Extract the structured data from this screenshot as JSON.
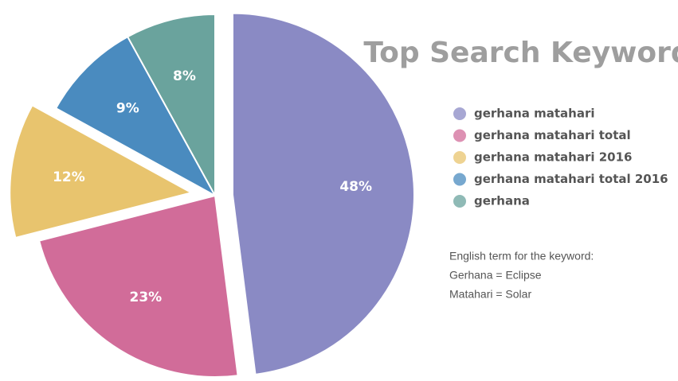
{
  "chart_data": {
    "type": "pie",
    "title": "Top Search Keyword",
    "categories": [
      "gerhana matahari",
      "gerhana matahari total",
      "gerhana matahari 2016",
      "gerhana matahari total 2016",
      "gerhana"
    ],
    "values": [
      48,
      23,
      12,
      9,
      8
    ],
    "value_labels": [
      "48%",
      "23%",
      "12%",
      "9%",
      "8%"
    ],
    "colors": [
      "#8a8ac4",
      "#d16c99",
      "#e8c46e",
      "#4a8bbf",
      "#6aa39d"
    ],
    "notes": [
      "English term for the keyword:",
      "Gerhana = Eclipse",
      "Matahari = Solar"
    ]
  }
}
